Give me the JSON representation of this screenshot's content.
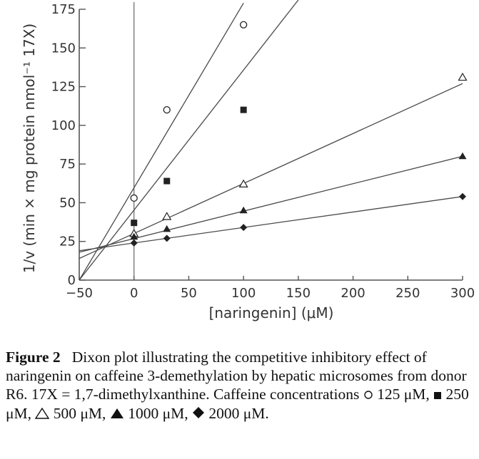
{
  "chart_data": {
    "type": "scatter",
    "xlabel": "[naringenin] (μM)",
    "ylabel": "1/v (min × mg protein nmol⁻¹ 17X)",
    "xlim": [
      -50,
      300
    ],
    "ylim": [
      0,
      175
    ],
    "x_ticks": [
      "−50",
      "0",
      "50",
      "100",
      "150",
      "200",
      "250",
      "300"
    ],
    "y_ticks": [
      "0",
      "25",
      "50",
      "75",
      "100",
      "125",
      "150",
      "175"
    ],
    "x_tick_values": [
      -50,
      0,
      50,
      100,
      150,
      200,
      250,
      300
    ],
    "y_tick_values": [
      0,
      25,
      50,
      75,
      100,
      125,
      150,
      175
    ],
    "grid": false,
    "vertical_line_at_x": 0,
    "series": [
      {
        "marker": "open-circle",
        "x": [
          0,
          30,
          100
        ],
        "y": [
          53,
          110,
          165
        ],
        "fit": {
          "x": [
            -50,
            100
          ],
          "y": [
            0,
            179
          ]
        }
      },
      {
        "marker": "filled-square",
        "x": [
          0,
          30,
          100
        ],
        "y": [
          37,
          64,
          110
        ],
        "fit": {
          "x": [
            -50,
            150
          ],
          "y": [
            0,
            181
          ]
        }
      },
      {
        "marker": "open-triangle",
        "x": [
          0,
          30,
          100,
          300
        ],
        "y": [
          30,
          41,
          62,
          131
        ],
        "fit": {
          "x": [
            -50,
            300
          ],
          "y": [
            14,
            127
          ]
        }
      },
      {
        "marker": "filled-triangle",
        "x": [
          0,
          30,
          100,
          300
        ],
        "y": [
          28,
          33,
          45,
          80
        ],
        "fit": {
          "x": [
            -50,
            300
          ],
          "y": [
            18,
            80
          ]
        }
      },
      {
        "marker": "filled-diamond",
        "x": [
          0,
          30,
          100,
          300
        ],
        "y": [
          24,
          27,
          34,
          54
        ],
        "fit": {
          "x": [
            -50,
            300
          ],
          "y": [
            19,
            54
          ]
        }
      }
    ]
  },
  "caption": {
    "figure_label": "Figure 2",
    "text": "Dixon plot illustrating the competitive inhibitory effect of naringenin on caffeine 3-demethylation by hepatic microsomes from donor R6. 17X = 1,7-dimethylxanthine. Caffeine concentrations",
    "legend_items": [
      "125 μM,",
      "250 μM,",
      "500 μM,",
      "1000 μM,",
      "2000 μM."
    ]
  }
}
